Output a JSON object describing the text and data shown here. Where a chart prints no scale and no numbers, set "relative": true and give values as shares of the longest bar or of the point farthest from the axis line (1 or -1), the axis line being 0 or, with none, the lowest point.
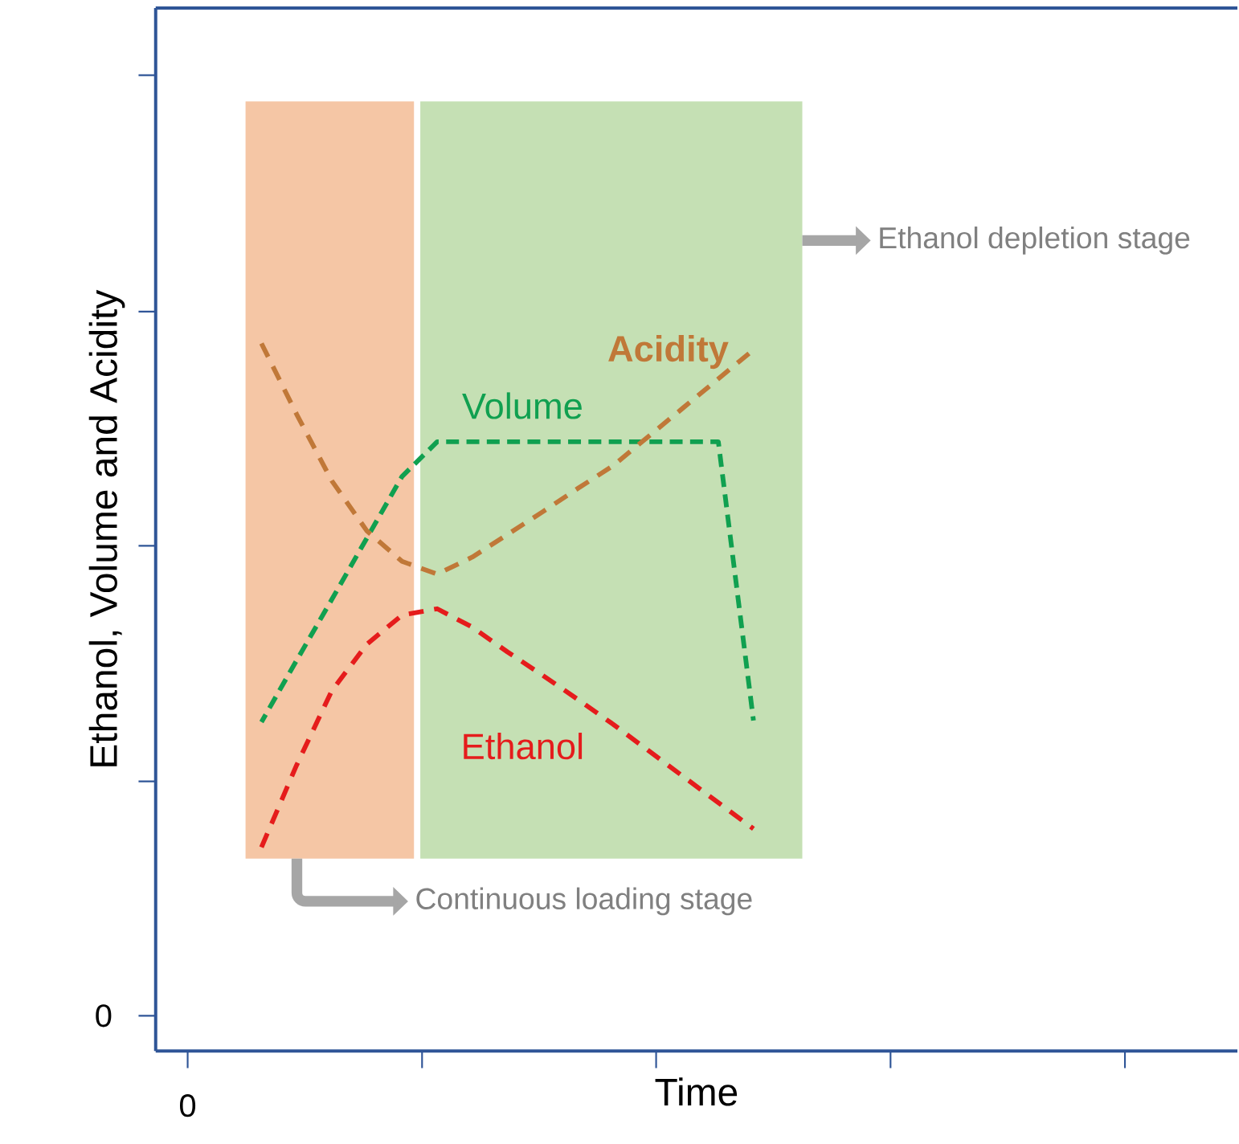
{
  "chart_data": {
    "type": "line",
    "xlabel": "Time",
    "ylabel": "Ethanol, Volume and Acidity",
    "relative": true,
    "annotations": [
      "0",
      "0",
      "Continuous loading stage",
      "Ethanol depletion stage"
    ],
    "categories": [
      null,
      null,
      null,
      null,
      null,
      null,
      null,
      null,
      null,
      null,
      null,
      null,
      null,
      null,
      null
    ],
    "line_style": "dashed",
    "series": [
      {
        "name": "Ethanol",
        "color": "#e51c1c",
        "values": [
          0.288,
          0.404,
          0.509,
          0.575,
          0.616,
          0.625,
          0.599,
          0.564,
          0.531,
          0.497,
          0.462,
          0.425,
          0.388,
          0.351,
          0.314
        ]
      },
      {
        "name": "Volume",
        "color": "#10a050",
        "values": [
          0.465,
          0.552,
          0.638,
          0.725,
          0.812,
          0.861,
          0.861,
          0.861,
          0.861,
          0.861,
          0.861,
          0.861,
          0.861,
          0.861,
          0.467
        ]
      },
      {
        "name": "Acidity",
        "color": "#c07838",
        "values": [
          1.0,
          0.9,
          0.806,
          0.735,
          0.692,
          0.674,
          0.698,
          0.73,
          0.762,
          0.795,
          0.827,
          0.868,
          0.909,
          0.95,
          0.991
        ]
      }
    ]
  }
}
